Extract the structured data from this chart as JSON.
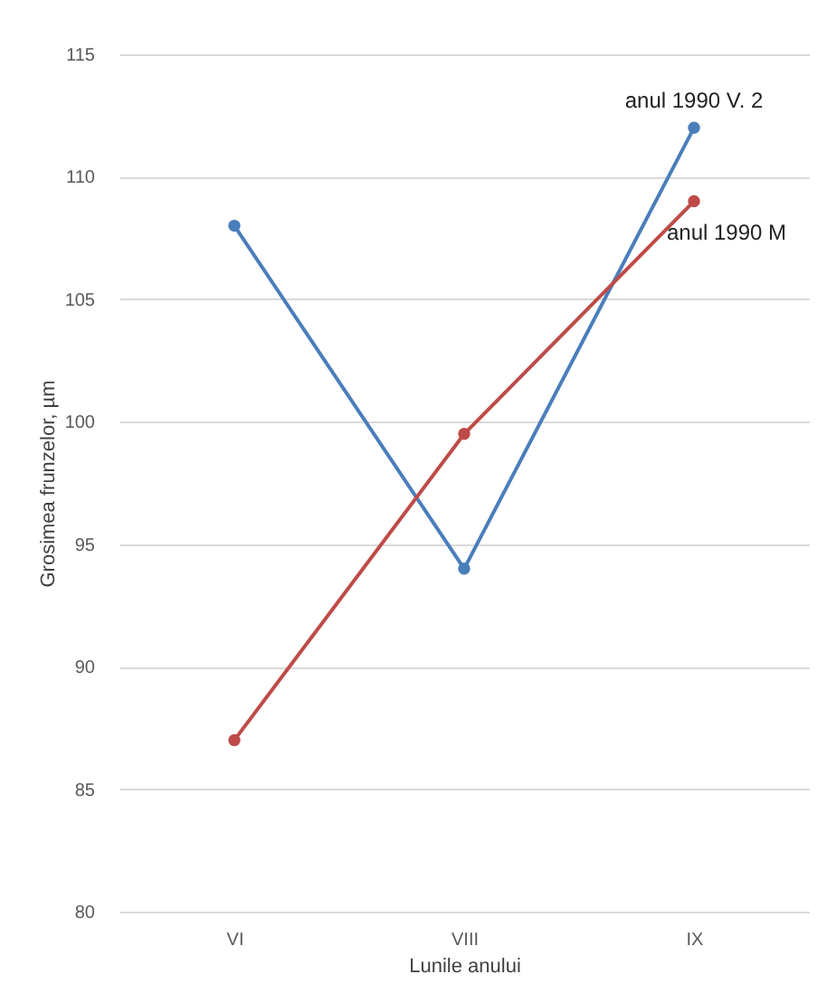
{
  "chart_data": {
    "type": "line",
    "xlabel": "Lunile anului",
    "ylabel": "Grosimea frunzelor, µm",
    "categories": [
      "VI",
      "VIII",
      "IX"
    ],
    "series": [
      {
        "name": "anul 1990 V. 2",
        "color": "#4a7ebb",
        "values": [
          108,
          94,
          112
        ]
      },
      {
        "name": "anul 1990 M",
        "color": "#be4b48",
        "values": [
          87,
          99.5,
          109
        ]
      }
    ],
    "ylim": [
      80,
      115
    ],
    "yticks": [
      80,
      85,
      90,
      95,
      100,
      105,
      110,
      115
    ],
    "grid": "y",
    "legend": false,
    "marker": "circle",
    "line_style": "solid"
  }
}
